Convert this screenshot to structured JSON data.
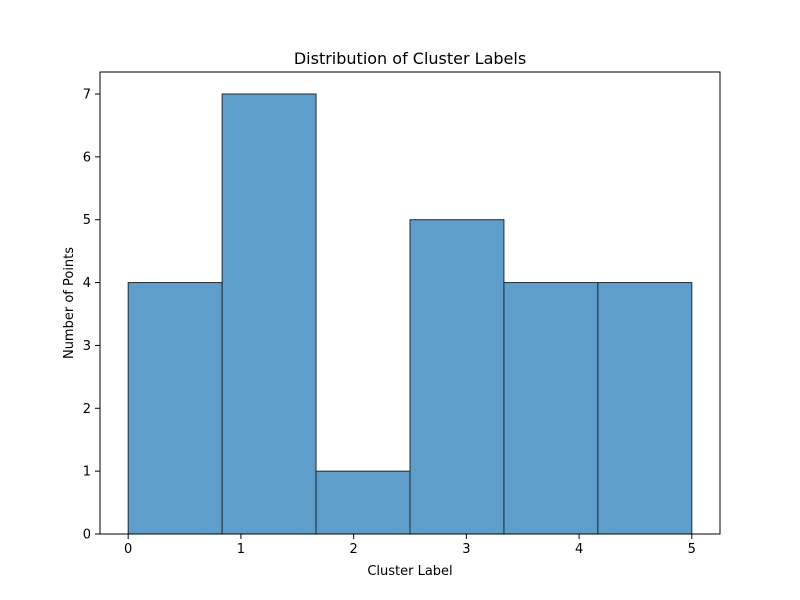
{
  "chart_data": {
    "type": "bar",
    "title": "Distribution of Cluster Labels",
    "xlabel": "Cluster Label",
    "ylabel": "Number of Points",
    "bins": [
      {
        "start": 0.0,
        "end": 0.8333,
        "value": 4
      },
      {
        "start": 0.8333,
        "end": 1.6667,
        "value": 7
      },
      {
        "start": 1.6667,
        "end": 2.5,
        "value": 1
      },
      {
        "start": 2.5,
        "end": 3.3333,
        "value": 5
      },
      {
        "start": 3.3333,
        "end": 4.1667,
        "value": 4
      },
      {
        "start": 4.1667,
        "end": 5.0,
        "value": 4
      }
    ],
    "values": [
      4,
      7,
      1,
      5,
      4,
      4
    ],
    "xlim": [
      -0.25,
      5.25
    ],
    "ylim": [
      0,
      7.35
    ],
    "xticks": [
      "0",
      "1",
      "2",
      "3",
      "4",
      "5"
    ],
    "yticks": [
      "0",
      "1",
      "2",
      "3",
      "4",
      "5",
      "6",
      "7"
    ],
    "grid": false,
    "bar_color": "#5f9ecb",
    "edge_color": "#1f2a33"
  }
}
